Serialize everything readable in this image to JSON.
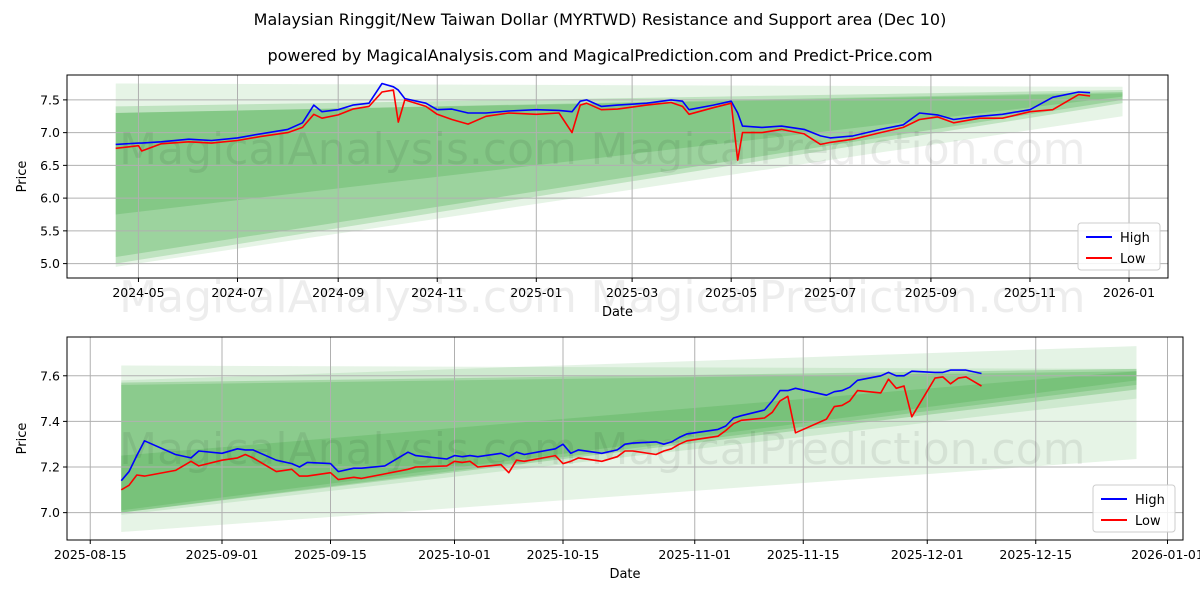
{
  "title": "Malaysian Ringgit/New Taiwan Dollar (MYRTWD) Resistance and Support area (Dec 10)",
  "subtitle": "powered by MagicalAnalysis.com and MagicalPrediction.com and Predict-Price.com",
  "watermarks": [
    "MagicalAnalysis.com",
    "MagicalPrediction.com"
  ],
  "colors": {
    "high": "#0000ff",
    "low": "#ff0000",
    "band": "#4caf50",
    "grid": "#b0b0b0"
  },
  "chart_data": [
    {
      "type": "line",
      "xlabel": "Date",
      "ylabel": "Price",
      "xlim": [
        "2024-03-18",
        "2026-01-25"
      ],
      "ylim": [
        4.78,
        7.88
      ],
      "yticks": [
        5.0,
        5.5,
        6.0,
        6.5,
        7.0,
        7.5
      ],
      "ytick_labels": [
        "5.0",
        "5.5",
        "6.0",
        "6.5",
        "7.0",
        "7.5"
      ],
      "xticks": [
        "2024-05-01",
        "2024-07-01",
        "2024-09-01",
        "2024-11-01",
        "2025-01-01",
        "2025-03-01",
        "2025-05-01",
        "2025-07-01",
        "2025-09-01",
        "2025-11-01",
        "2026-01-01"
      ],
      "xtick_labels": [
        "2024-05",
        "2024-07",
        "2024-09",
        "2024-11",
        "2025-01",
        "2025-03",
        "2025-05",
        "2025-07",
        "2025-09",
        "2025-11",
        "2026-01"
      ],
      "grid": true,
      "legend": {
        "placement": "bottom-right",
        "entries": [
          "High",
          "Low"
        ]
      },
      "bands": [
        {
          "start": "2024-04-17",
          "end": "2025-12-28",
          "top": [
            7.75,
            7.7
          ],
          "bottom": [
            4.95,
            7.25
          ],
          "opacity": 0.14
        },
        {
          "start": "2024-04-17",
          "end": "2025-12-28",
          "top": [
            7.4,
            7.65
          ],
          "bottom": [
            5.0,
            7.45
          ],
          "opacity": 0.25
        },
        {
          "start": "2024-04-17",
          "end": "2025-12-28",
          "top": [
            7.3,
            7.62
          ],
          "bottom": [
            5.1,
            7.5
          ],
          "opacity": 0.3
        },
        {
          "start": "2024-04-17",
          "end": "2025-12-28",
          "top": [
            7.3,
            7.6
          ],
          "bottom": [
            5.75,
            7.55
          ],
          "opacity": 0.3
        }
      ],
      "dates": [
        "2024-04-17",
        "2024-05-01",
        "2024-05-03",
        "2024-05-15",
        "2024-06-01",
        "2024-06-15",
        "2024-07-01",
        "2024-07-15",
        "2024-08-01",
        "2024-08-10",
        "2024-08-17",
        "2024-08-22",
        "2024-09-01",
        "2024-09-10",
        "2024-09-20",
        "2024-09-28",
        "2024-10-05",
        "2024-10-08",
        "2024-10-12",
        "2024-10-25",
        "2024-11-01",
        "2024-11-10",
        "2024-11-20",
        "2024-12-01",
        "2024-12-15",
        "2025-01-01",
        "2025-01-15",
        "2025-01-23",
        "2025-01-28",
        "2025-02-01",
        "2025-02-10",
        "2025-02-20",
        "2025-03-10",
        "2025-03-25",
        "2025-04-01",
        "2025-04-05",
        "2025-04-20",
        "2025-05-01",
        "2025-05-05",
        "2025-05-08",
        "2025-05-20",
        "2025-06-01",
        "2025-06-15",
        "2025-06-25",
        "2025-07-01",
        "2025-07-15",
        "2025-08-01",
        "2025-08-15",
        "2025-08-25",
        "2025-09-05",
        "2025-09-15",
        "2025-10-01",
        "2025-10-15",
        "2025-11-01",
        "2025-11-15",
        "2025-12-01",
        "2025-12-08"
      ],
      "series": [
        {
          "name": "High",
          "values": [
            6.82,
            6.84,
            6.84,
            6.86,
            6.9,
            6.88,
            6.92,
            6.98,
            7.05,
            7.15,
            7.42,
            7.32,
            7.35,
            7.42,
            7.45,
            7.75,
            7.7,
            7.65,
            7.52,
            7.45,
            7.35,
            7.36,
            7.3,
            7.3,
            7.33,
            7.35,
            7.34,
            7.32,
            7.48,
            7.5,
            7.4,
            7.42,
            7.45,
            7.5,
            7.48,
            7.35,
            7.42,
            7.48,
            7.3,
            7.1,
            7.08,
            7.1,
            7.05,
            6.95,
            6.92,
            6.95,
            7.05,
            7.12,
            7.3,
            7.27,
            7.2,
            7.25,
            7.28,
            7.35,
            7.54,
            7.62,
            7.61
          ]
        },
        {
          "name": "Low",
          "values": [
            6.76,
            6.8,
            6.72,
            6.83,
            6.86,
            6.84,
            6.88,
            6.94,
            7.0,
            7.08,
            7.28,
            7.22,
            7.27,
            7.36,
            7.4,
            7.62,
            7.65,
            7.16,
            7.5,
            7.4,
            7.28,
            7.2,
            7.13,
            7.25,
            7.3,
            7.28,
            7.3,
            7.0,
            7.42,
            7.45,
            7.35,
            7.36,
            7.42,
            7.46,
            7.4,
            7.28,
            7.38,
            7.45,
            6.58,
            7.0,
            7.0,
            7.05,
            6.98,
            6.82,
            6.85,
            6.9,
            7.0,
            7.08,
            7.2,
            7.24,
            7.15,
            7.22,
            7.22,
            7.32,
            7.35,
            7.58,
            7.56
          ]
        }
      ]
    },
    {
      "type": "line",
      "xlabel": "Date",
      "ylabel": "Price",
      "xlim": [
        "2025-08-12",
        "2026-01-03"
      ],
      "ylim": [
        6.88,
        7.77
      ],
      "yticks": [
        7.0,
        7.2,
        7.4,
        7.6
      ],
      "ytick_labels": [
        "7.0",
        "7.2",
        "7.4",
        "7.6"
      ],
      "xticks": [
        "2025-08-15",
        "2025-09-01",
        "2025-09-15",
        "2025-10-01",
        "2025-10-15",
        "2025-11-01",
        "2025-11-15",
        "2025-12-01",
        "2025-12-15",
        "2026-01-01"
      ],
      "xtick_labels": [
        "2025-08-15",
        "2025-09-01",
        "2025-09-15",
        "2025-10-01",
        "2025-10-15",
        "2025-11-01",
        "2025-11-15",
        "2025-12-01",
        "2025-12-15",
        "2026-01-01"
      ],
      "grid": true,
      "legend": {
        "placement": "bottom-right",
        "entries": [
          "High",
          "Low"
        ]
      },
      "bands": [
        {
          "start": "2025-08-19",
          "end": "2025-12-28",
          "top": [
            7.645,
            7.63
          ],
          "bottom": [
            6.915,
            7.235
          ],
          "opacity": 0.14
        },
        {
          "start": "2025-08-19",
          "end": "2025-12-28",
          "top": [
            7.58,
            7.73
          ],
          "bottom": [
            6.99,
            7.5
          ],
          "opacity": 0.15
        },
        {
          "start": "2025-08-19",
          "end": "2025-12-28",
          "top": [
            7.57,
            7.63
          ],
          "bottom": [
            7.0,
            7.54
          ],
          "opacity": 0.3
        },
        {
          "start": "2025-08-19",
          "end": "2025-12-28",
          "top": [
            7.56,
            7.62
          ],
          "bottom": [
            7.0,
            7.56
          ],
          "opacity": 0.3
        },
        {
          "start": "2025-08-19",
          "end": "2025-12-28",
          "top": [
            7.25,
            7.62
          ],
          "bottom": [
            7.01,
            7.58
          ],
          "opacity": 0.3
        }
      ],
      "dates": [
        "2025-08-19",
        "2025-08-20",
        "2025-08-21",
        "2025-08-22",
        "2025-08-26",
        "2025-08-28",
        "2025-08-29",
        "2025-09-01",
        "2025-09-03",
        "2025-09-04",
        "2025-09-05",
        "2025-09-08",
        "2025-09-10",
        "2025-09-11",
        "2025-09-12",
        "2025-09-15",
        "2025-09-16",
        "2025-09-18",
        "2025-09-19",
        "2025-09-22",
        "2025-09-25",
        "2025-09-26",
        "2025-09-30",
        "2025-10-01",
        "2025-10-02",
        "2025-10-03",
        "2025-10-04",
        "2025-10-07",
        "2025-10-08",
        "2025-10-09",
        "2025-10-10",
        "2025-10-14",
        "2025-10-15",
        "2025-10-16",
        "2025-10-17",
        "2025-10-20",
        "2025-10-22",
        "2025-10-23",
        "2025-10-24",
        "2025-10-27",
        "2025-10-28",
        "2025-10-29",
        "2025-10-30",
        "2025-10-31",
        "2025-11-04",
        "2025-11-05",
        "2025-11-06",
        "2025-11-07",
        "2025-11-10",
        "2025-11-11",
        "2025-11-12",
        "2025-11-13",
        "2025-11-14",
        "2025-11-18",
        "2025-11-19",
        "2025-11-20",
        "2025-11-21",
        "2025-11-22",
        "2025-11-25",
        "2025-11-26",
        "2025-11-27",
        "2025-11-28",
        "2025-11-29",
        "2025-12-02",
        "2025-12-03",
        "2025-12-04",
        "2025-12-05",
        "2025-12-06",
        "2025-12-08"
      ],
      "series": [
        {
          "name": "High",
          "values": [
            7.14,
            7.18,
            7.25,
            7.315,
            7.255,
            7.24,
            7.27,
            7.26,
            7.28,
            7.275,
            7.275,
            7.23,
            7.215,
            7.2,
            7.22,
            7.215,
            7.18,
            7.195,
            7.195,
            7.205,
            7.265,
            7.25,
            7.235,
            7.25,
            7.245,
            7.25,
            7.245,
            7.26,
            7.245,
            7.265,
            7.255,
            7.28,
            7.3,
            7.26,
            7.275,
            7.26,
            7.275,
            7.3,
            7.305,
            7.31,
            7.3,
            7.31,
            7.33,
            7.345,
            7.365,
            7.38,
            7.415,
            7.425,
            7.45,
            7.49,
            7.535,
            7.535,
            7.545,
            7.515,
            7.53,
            7.535,
            7.55,
            7.58,
            7.6,
            7.615,
            7.6,
            7.6,
            7.62,
            7.615,
            7.615,
            7.625,
            7.625,
            7.625,
            7.61
          ]
        },
        {
          "name": "Low",
          "values": [
            7.1,
            7.12,
            7.165,
            7.16,
            7.185,
            7.225,
            7.205,
            7.23,
            7.24,
            7.255,
            7.24,
            7.18,
            7.19,
            7.16,
            7.16,
            7.175,
            7.145,
            7.155,
            7.15,
            7.17,
            7.19,
            7.2,
            7.205,
            7.225,
            7.22,
            7.225,
            7.2,
            7.21,
            7.175,
            7.23,
            7.225,
            7.25,
            7.215,
            7.225,
            7.24,
            7.225,
            7.245,
            7.27,
            7.27,
            7.255,
            7.27,
            7.28,
            7.3,
            7.315,
            7.335,
            7.36,
            7.39,
            7.405,
            7.415,
            7.44,
            7.49,
            7.51,
            7.35,
            7.41,
            7.465,
            7.47,
            7.49,
            7.535,
            7.525,
            7.585,
            7.545,
            7.555,
            7.42,
            7.59,
            7.595,
            7.565,
            7.59,
            7.595,
            7.555
          ]
        }
      ]
    }
  ]
}
